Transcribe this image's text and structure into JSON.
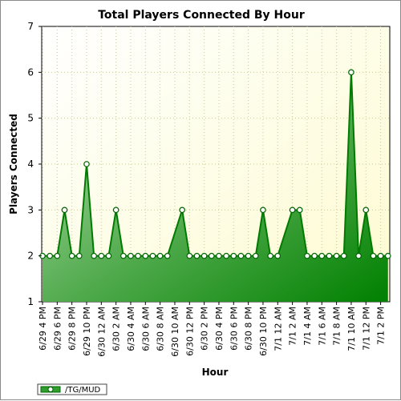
{
  "chart_data": {
    "type": "area",
    "title": "Total Players Connected By Hour",
    "xlabel": "Hour",
    "ylabel": "Players Connected",
    "ylim": [
      1,
      7
    ],
    "yticks": [
      1,
      2,
      3,
      4,
      5,
      6,
      7
    ],
    "grid": true,
    "legend_position": "bottom-left",
    "xtick_labels": [
      "6/29 4 PM",
      "6/29 6 PM",
      "6/29 8 PM",
      "6/29 10 PM",
      "6/30 12 AM",
      "6/30 2 AM",
      "6/30 4 AM",
      "6/30 6 AM",
      "6/30 8 AM",
      "6/30 10 AM",
      "6/30 12 PM",
      "6/30 2 PM",
      "6/30 4 PM",
      "6/30 6 PM",
      "6/30 8 PM",
      "6/30 10 PM",
      "7/1 12 AM",
      "7/1 2 AM",
      "7/1 4 AM",
      "7/1 6 AM",
      "7/1 8 AM",
      "7/1 10 AM",
      "7/1 12 PM",
      "7/1 2 PM"
    ],
    "series": [
      {
        "name": "/TG/MUD",
        "color": "#008000",
        "points": [
          {
            "x": "6/29 4 PM",
            "y": 2
          },
          {
            "x": "6/29 5 PM",
            "y": 2
          },
          {
            "x": "6/29 6 PM",
            "y": 2
          },
          {
            "x": "6/29 7 PM",
            "y": 3
          },
          {
            "x": "6/29 8 PM",
            "y": 2
          },
          {
            "x": "6/29 9 PM",
            "y": 2
          },
          {
            "x": "6/29 10 PM",
            "y": 4
          },
          {
            "x": "6/29 11 PM",
            "y": 2
          },
          {
            "x": "6/30 12 AM",
            "y": 2
          },
          {
            "x": "6/30 1 AM",
            "y": 2
          },
          {
            "x": "6/30 2 AM",
            "y": 3
          },
          {
            "x": "6/30 3 AM",
            "y": 2
          },
          {
            "x": "6/30 4 AM",
            "y": 2
          },
          {
            "x": "6/30 5 AM",
            "y": 2
          },
          {
            "x": "6/30 6 AM",
            "y": 2
          },
          {
            "x": "6/30 7 AM",
            "y": 2
          },
          {
            "x": "6/30 8 AM",
            "y": 2
          },
          {
            "x": "6/30 9 AM",
            "y": 2
          },
          {
            "x": "6/30 11 AM",
            "y": 3
          },
          {
            "x": "6/30 12 PM",
            "y": 2
          },
          {
            "x": "6/30 1 PM",
            "y": 2
          },
          {
            "x": "6/30 2 PM",
            "y": 2
          },
          {
            "x": "6/30 3 PM",
            "y": 2
          },
          {
            "x": "6/30 4 PM",
            "y": 2
          },
          {
            "x": "6/30 5 PM",
            "y": 2
          },
          {
            "x": "6/30 6 PM",
            "y": 2
          },
          {
            "x": "6/30 7 PM",
            "y": 2
          },
          {
            "x": "6/30 8 PM",
            "y": 2
          },
          {
            "x": "6/30 9 PM",
            "y": 2
          },
          {
            "x": "6/30 10 PM",
            "y": 3
          },
          {
            "x": "6/30 11 PM",
            "y": 2
          },
          {
            "x": "7/1 12 AM",
            "y": 2
          },
          {
            "x": "7/1 2 AM",
            "y": 3
          },
          {
            "x": "7/1 3 AM",
            "y": 3
          },
          {
            "x": "7/1 4 AM",
            "y": 2
          },
          {
            "x": "7/1 5 AM",
            "y": 2
          },
          {
            "x": "7/1 6 AM",
            "y": 2
          },
          {
            "x": "7/1 7 AM",
            "y": 2
          },
          {
            "x": "7/1 8 AM",
            "y": 2
          },
          {
            "x": "7/1 9 AM",
            "y": 2
          },
          {
            "x": "7/1 10 AM",
            "y": 6
          },
          {
            "x": "7/1 11 AM",
            "y": 2
          },
          {
            "x": "7/1 12 PM",
            "y": 3
          },
          {
            "x": "7/1 1 PM",
            "y": 2
          },
          {
            "x": "7/1 2 PM",
            "y": 2
          },
          {
            "x": "7/1 3 PM",
            "y": 2
          }
        ]
      }
    ]
  }
}
